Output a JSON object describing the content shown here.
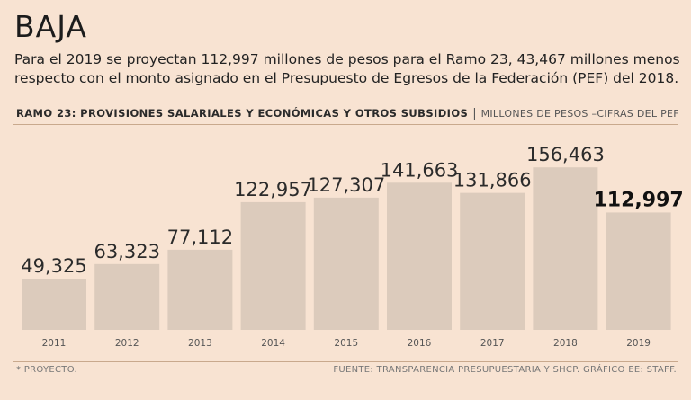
{
  "headline": "BAJA",
  "intro": "Para el 2019 se proyectan 112,997 millones de pesos para el Ramo 23, 43,467 millones menos respecto con el monto asignado en el Presupuesto de Egresos de la Federación (PEF) del 2018.",
  "subtitle": {
    "main": "RAMO 23: PROVISIONES SALARIALES Y ECONÓMICAS Y OTROS SUBSIDIOS",
    "separator": "|",
    "units": "MILLONES DE PESOS –CIFRAS DEL PEF"
  },
  "colors": {
    "background": "#f8e3d2",
    "bar": "#dccbbc",
    "highlight_text": "#111111"
  },
  "chart_data": {
    "type": "bar",
    "title": "RAMO 23: PROVISIONES SALARIALES Y ECONÓMICAS Y OTROS SUBSIDIOS",
    "ylabel": "MILLONES DE PESOS",
    "xlabel": "",
    "categories": [
      "2011",
      "2012",
      "2013",
      "2014",
      "2015",
      "2016",
      "2017",
      "2018",
      "2019"
    ],
    "values": [
      49325,
      63323,
      77112,
      122957,
      127307,
      141663,
      131866,
      156463,
      112997
    ],
    "value_labels": [
      "49,325",
      "63,323",
      "77,112",
      "122,957",
      "127,307",
      "141,663",
      "131,866",
      "156,463",
      "112,997"
    ],
    "highlight_index": 8,
    "ylim": [
      0,
      180000
    ],
    "grid": false
  },
  "footer": {
    "note": "* PROYECTO.",
    "source": "FUENTE: TRANSPARENCIA PRESUPUESTARIA Y SHCP. GRÁFICO EE: STAFF."
  }
}
